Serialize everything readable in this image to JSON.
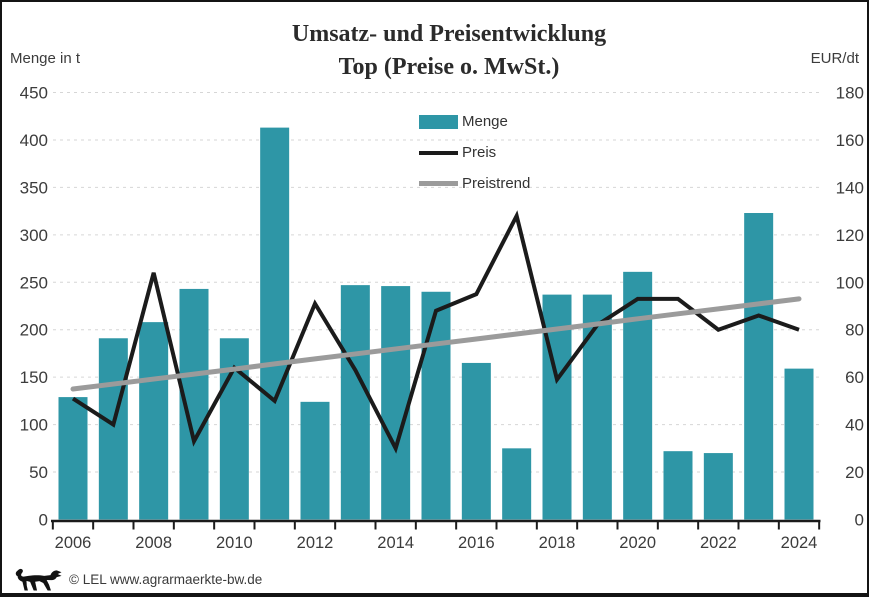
{
  "title": {
    "line1": "Umsatz- und Preisentwicklung",
    "line2": "Top (Preise o. MwSt.)"
  },
  "axis_labels": {
    "left": "Menge in t",
    "right": "EUR/dt"
  },
  "legend": {
    "items": [
      {
        "label": "Menge",
        "swatch": "bar"
      },
      {
        "label": "Preis",
        "swatch": "line-black"
      },
      {
        "label": "Preistrend",
        "swatch": "line-gray"
      }
    ]
  },
  "footer": {
    "credit": "© LEL www.agrarmaerkte-bw.de",
    "logo": "baden-wuerttemberg-lion-logo"
  },
  "colors": {
    "bar": "#2e96a6",
    "preis": "#1b1b1b",
    "preistrend": "#9b9b9b",
    "grid": "#d6d6d6",
    "axis": "#1b1b1b",
    "tick_text": "#3c3c3c",
    "title_text": "#2b2b2b"
  },
  "chart_data": {
    "type": "bar+line",
    "title": "Umsatz- und Preisentwicklung Top (Preise o. MwSt.)",
    "categories": [
      2006,
      2007,
      2008,
      2009,
      2010,
      2011,
      2012,
      2013,
      2014,
      2015,
      2016,
      2017,
      2018,
      2019,
      2020,
      2021,
      2022,
      2023,
      2024
    ],
    "x_tick_labels": [
      "2006",
      "2008",
      "2010",
      "2012",
      "2014",
      "2016",
      "2018",
      "2020",
      "2022",
      "2024"
    ],
    "series": [
      {
        "name": "Menge",
        "type": "bar",
        "axis": "left",
        "unit": "t",
        "color": "#2e96a6",
        "values": [
          129,
          191,
          208,
          243,
          191,
          413,
          124,
          247,
          246,
          240,
          165,
          75,
          237,
          237,
          261,
          72,
          70,
          323,
          159
        ]
      },
      {
        "name": "Preis",
        "type": "line",
        "axis": "right",
        "unit": "EUR/dt",
        "color": "#1b1b1b",
        "values": [
          51,
          40,
          104,
          33,
          64,
          50,
          91,
          63,
          30,
          88,
          95,
          128,
          59,
          82,
          93,
          93,
          80,
          86,
          80
        ]
      },
      {
        "name": "Preistrend",
        "type": "line",
        "axis": "right",
        "unit": "EUR/dt",
        "color": "#9b9b9b",
        "values": [
          55.0,
          57.1,
          59.2,
          61.3,
          63.4,
          65.6,
          67.7,
          69.8,
          71.9,
          74.0,
          76.1,
          78.2,
          80.3,
          82.4,
          84.6,
          86.7,
          88.8,
          90.9,
          93.0
        ]
      }
    ],
    "left_axis": {
      "label": "Menge in t",
      "min": 0,
      "max": 450,
      "tick_step": 50
    },
    "right_axis": {
      "label": "EUR/dt",
      "min": 0,
      "max": 180,
      "tick_step": 20
    },
    "grid": true,
    "legend_position": "top-center"
  }
}
